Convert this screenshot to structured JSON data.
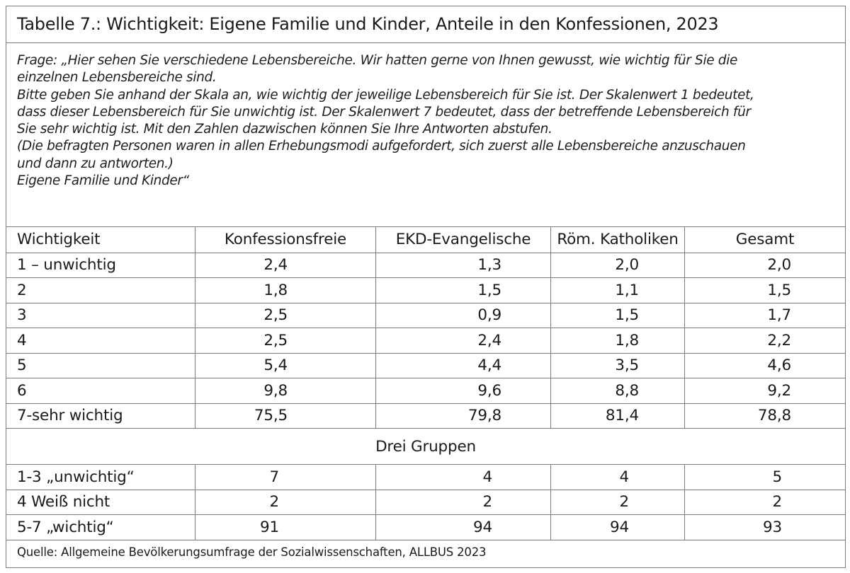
{
  "title": "Tabelle 7.: Wichtigkeit: Eigene Familie und Kinder, Anteile in den Konfessionen, 2023",
  "question_lines": [
    "Frage: „Hier sehen Sie verschiedene Lebensbereiche. Wir hatten gerne von Ihnen gewusst, wie wichtig für Sie die",
    "einzelnen Lebensbereiche sind.",
    "Bitte geben Sie anhand der Skala an, wie wichtig der jeweilige Lebensbereich für Sie ist. Der Skalenwert 1 bedeutet,",
    "dass dieser Lebensbereich für Sie unwichtig ist. Der Skalenwert 7 bedeutet, dass der betreffende Lebensbereich für",
    "Sie sehr wichtig ist. Mit den Zahlen dazwischen können Sie Ihre Antworten abstufen.",
    "(Die befragten Personen waren in allen Erhebungsmodi aufgefordert, sich zuerst alle Lebensbereiche anzuschauen",
    "und dann zu antworten.)",
    "Eigene Familie und Kinder“"
  ],
  "table": {
    "headers": [
      "Wichtigkeit",
      "Konfessionsfreie",
      "EKD-Evangelische",
      "Röm. Katholiken",
      "Gesamt"
    ],
    "rows": [
      [
        "1 – unwichtig",
        "2,4",
        "1,3",
        "2,0",
        "2,0"
      ],
      [
        "2",
        "1,8",
        "1,5",
        "1,1",
        "1,5"
      ],
      [
        "3",
        "2,5",
        "0,9",
        "1,5",
        "1,7"
      ],
      [
        "4",
        "2,5",
        "2,4",
        "1,8",
        "2,2"
      ],
      [
        "5",
        "5,4",
        "4,4",
        "3,5",
        "4,6"
      ],
      [
        "6",
        "9,8",
        "9,6",
        "8,8",
        "9,2"
      ],
      [
        "7-sehr wichtig",
        "75,5",
        "79,8",
        "81,4",
        "78,8"
      ]
    ],
    "group_heading": "Drei Gruppen",
    "group_rows": [
      [
        "1-3 „unwichtig“",
        "7",
        "4",
        "4",
        "5"
      ],
      [
        "4 Weiß nicht",
        "2",
        "2",
        "2",
        "2"
      ],
      [
        "5-7 „wichtig“",
        "91",
        "94",
        "94",
        "93"
      ]
    ]
  },
  "source": "Quelle: Allgemeine Bevölkerungsumfrage der Sozialwissenschaften, ALLBUS 2023",
  "colors": {
    "border": "#7a7a7a",
    "text": "#1a1a1a",
    "background": "#ffffff"
  }
}
